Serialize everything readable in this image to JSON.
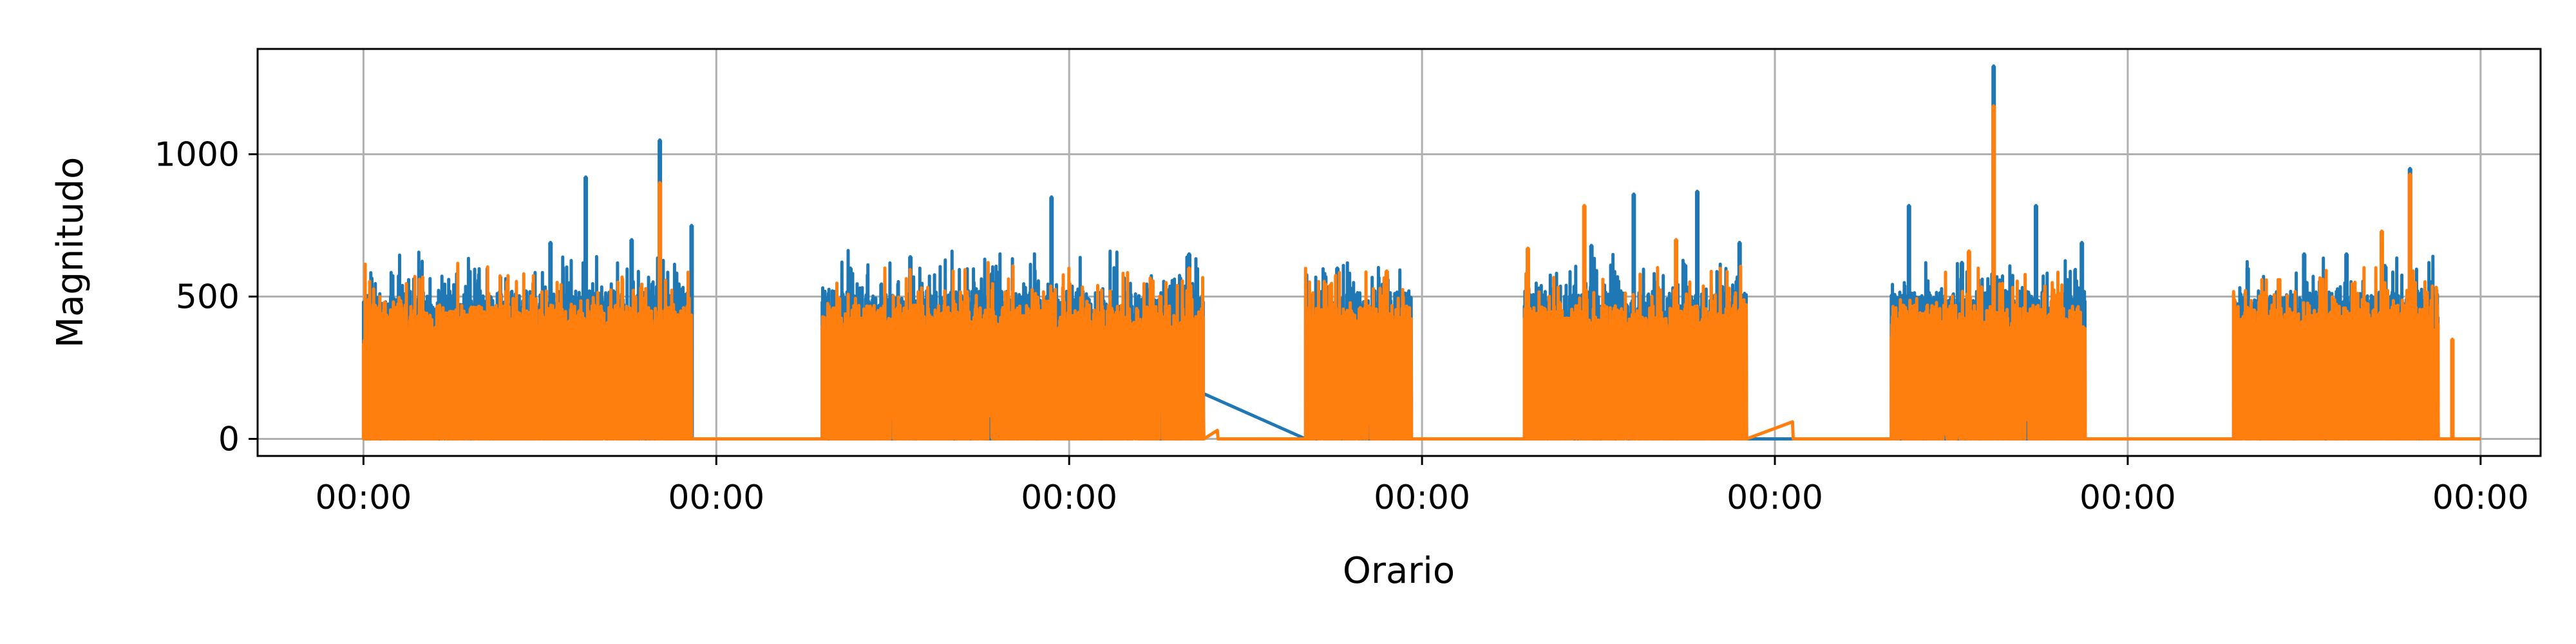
{
  "chart_data": {
    "type": "line",
    "title": "",
    "xlabel": "Orario",
    "ylabel": "Magnitudo",
    "xtick_labels": [
      "00:00",
      "00:00",
      "00:00",
      "00:00",
      "00:00",
      "00:00",
      "00:00"
    ],
    "xticks": [
      0,
      1,
      2,
      3,
      4,
      5,
      6
    ],
    "xlim": [
      -0.3,
      6.17
    ],
    "yticks": [
      0,
      500,
      1000
    ],
    "ytick_labels": [
      "0",
      "500",
      "1000"
    ],
    "ylim": [
      -60,
      1370
    ],
    "grid": true,
    "legend": null,
    "series": [
      {
        "color": "#1f77b4",
        "active_windows": [
          [
            0.0,
            0.93
          ],
          [
            1.3,
            2.38
          ],
          [
            2.67,
            2.97
          ],
          [
            3.29,
            3.92
          ],
          [
            4.33,
            4.88
          ],
          [
            5.3,
            5.88
          ]
        ],
        "peaks": [
          {
            "x": 0.02,
            "y": 230
          },
          {
            "x": 0.06,
            "y": 460
          },
          {
            "x": 0.12,
            "y": 470
          },
          {
            "x": 0.22,
            "y": 450
          },
          {
            "x": 0.36,
            "y": 500
          },
          {
            "x": 0.53,
            "y": 690
          },
          {
            "x": 0.63,
            "y": 920
          },
          {
            "x": 0.76,
            "y": 700
          },
          {
            "x": 0.84,
            "y": 1050
          },
          {
            "x": 0.93,
            "y": 750
          },
          {
            "x": 1.38,
            "y": 600
          },
          {
            "x": 1.55,
            "y": 640
          },
          {
            "x": 1.78,
            "y": 580
          },
          {
            "x": 1.95,
            "y": 850
          },
          {
            "x": 2.2,
            "y": 490
          },
          {
            "x": 2.34,
            "y": 650
          },
          {
            "x": 2.76,
            "y": 600
          },
          {
            "x": 2.9,
            "y": 580
          },
          {
            "x": 3.48,
            "y": 680
          },
          {
            "x": 3.6,
            "y": 860
          },
          {
            "x": 3.78,
            "y": 870
          },
          {
            "x": 3.9,
            "y": 690
          },
          {
            "x": 4.38,
            "y": 820
          },
          {
            "x": 4.53,
            "y": 620
          },
          {
            "x": 4.62,
            "y": 1310
          },
          {
            "x": 4.74,
            "y": 820
          },
          {
            "x": 4.87,
            "y": 690
          },
          {
            "x": 5.34,
            "y": 600
          },
          {
            "x": 5.5,
            "y": 650
          },
          {
            "x": 5.62,
            "y": 650
          },
          {
            "x": 5.8,
            "y": 950
          }
        ]
      },
      {
        "color": "#ff7f0e",
        "active_windows": [
          [
            0.0,
            0.93
          ],
          [
            1.3,
            2.38
          ],
          [
            2.67,
            2.97
          ],
          [
            3.29,
            3.92
          ],
          [
            4.33,
            4.88
          ],
          [
            5.3,
            5.88
          ]
        ],
        "peaks": [
          {
            "x": 0.06,
            "y": 480
          },
          {
            "x": 0.3,
            "y": 370
          },
          {
            "x": 0.84,
            "y": 900
          },
          {
            "x": 2.34,
            "y": 600
          },
          {
            "x": 2.74,
            "y": 540
          },
          {
            "x": 2.9,
            "y": 590
          },
          {
            "x": 3.3,
            "y": 670
          },
          {
            "x": 3.46,
            "y": 820
          },
          {
            "x": 3.72,
            "y": 700
          },
          {
            "x": 4.62,
            "y": 1170
          },
          {
            "x": 4.55,
            "y": 660
          },
          {
            "x": 5.72,
            "y": 730
          },
          {
            "x": 5.8,
            "y": 930
          },
          {
            "x": 5.92,
            "y": 350
          }
        ],
        "baseline_extra": [
          {
            "x": 0.93,
            "y": 0
          },
          {
            "x": 2.38,
            "y": 180
          },
          {
            "x": 2.42,
            "y": 30
          },
          {
            "x": 4.05,
            "y": 60
          }
        ]
      }
    ]
  }
}
